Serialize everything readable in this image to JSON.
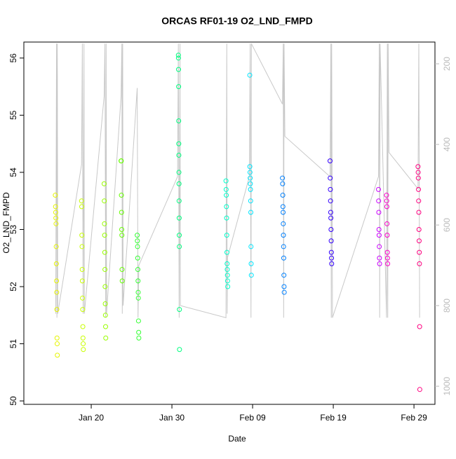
{
  "chart_data": {
    "type": "scatter",
    "title": "ORCAS RF01-19 O2_LND_FMPD",
    "x_label": "Date",
    "y_label": "O2_LND_FMPD",
    "xlim": [
      11.65,
      62.6
    ],
    "ylim": [
      49.94,
      56.28
    ],
    "y2lim": [
      1045,
      146
    ],
    "xticks": [
      {
        "value": 20,
        "label": "Jan 20"
      },
      {
        "value": 30,
        "label": "Jan 30"
      },
      {
        "value": 40,
        "label": "Feb 09"
      },
      {
        "value": 50,
        "label": "Feb 19"
      },
      {
        "value": 60,
        "label": "Feb 29"
      }
    ],
    "yticks": [
      50,
      51,
      52,
      53,
      54,
      55,
      56
    ],
    "y2ticks": [
      200,
      400,
      600,
      800,
      1000
    ],
    "series": [
      {
        "color": "#e6f500",
        "x": [
          15.55,
          15.58,
          15.6,
          15.62,
          15.64,
          15.66,
          15.68,
          15.7,
          15.72,
          15.74,
          15.76,
          15.78,
          15.8
        ],
        "values": [
          53.6,
          53.4,
          53.3,
          53.2,
          53.1,
          52.7,
          52.4,
          52.1,
          51.9,
          51.6,
          51.1,
          51.0,
          50.8
        ]
      },
      {
        "color": "#c8ff00",
        "x": [
          18.8,
          18.82,
          18.84,
          18.86,
          18.88,
          18.9,
          18.92,
          18.94,
          18.96,
          18.98,
          19.0,
          19.02
        ],
        "values": [
          53.5,
          53.4,
          52.9,
          52.7,
          52.3,
          52.1,
          51.8,
          51.6,
          51.3,
          51.1,
          51.0,
          50.9
        ]
      },
      {
        "color": "#99ff00",
        "x": [
          21.6,
          21.62,
          21.64,
          21.66,
          21.68,
          21.7,
          21.72,
          21.74,
          21.76,
          21.78,
          21.8
        ],
        "values": [
          53.8,
          53.5,
          53.1,
          52.9,
          52.6,
          52.3,
          52.0,
          51.7,
          51.5,
          51.3,
          51.1
        ]
      },
      {
        "color": "#66ff00",
        "x": [
          23.7,
          23.72,
          23.74,
          23.76,
          23.78,
          23.8,
          23.82,
          23.84
        ],
        "values": [
          54.2,
          54.2,
          53.6,
          53.3,
          53.0,
          52.9,
          52.3,
          52.1
        ]
      },
      {
        "color": "#33ff33",
        "x": [
          25.7,
          25.72,
          25.74,
          25.76,
          25.78,
          25.8,
          25.82,
          25.84,
          25.86,
          25.88,
          25.9
        ],
        "values": [
          52.9,
          52.8,
          52.7,
          52.5,
          52.3,
          52.1,
          51.9,
          51.8,
          51.4,
          51.2,
          51.1
        ]
      },
      {
        "color": "#00ff80",
        "x": [
          30.8,
          30.81,
          30.82,
          30.83,
          30.84,
          30.85,
          30.86,
          30.87,
          30.88,
          30.89,
          30.9,
          30.91,
          30.92,
          30.93,
          30.94
        ],
        "values": [
          56.05,
          56.0,
          55.8,
          55.5,
          54.9,
          54.5,
          54.3,
          54.0,
          53.8,
          53.5,
          53.2,
          52.9,
          52.7,
          51.6,
          50.9
        ]
      },
      {
        "color": "#00ffcc",
        "x": [
          36.7,
          36.72,
          36.74,
          36.76,
          36.78,
          36.8,
          36.82,
          36.84,
          36.86,
          36.88,
          36.9,
          36.92
        ],
        "values": [
          53.85,
          53.7,
          53.6,
          53.4,
          53.2,
          52.9,
          52.6,
          52.4,
          52.3,
          52.2,
          52.1,
          52.0
        ]
      },
      {
        "color": "#00e5ff",
        "x": [
          39.65,
          39.66,
          39.68,
          39.7,
          39.72,
          39.74,
          39.76,
          39.78,
          39.8,
          39.82,
          39.84
        ],
        "values": [
          55.7,
          54.1,
          54.0,
          53.9,
          53.8,
          53.7,
          53.5,
          53.3,
          52.7,
          52.4,
          52.2
        ]
      },
      {
        "color": "#0080ff",
        "x": [
          43.7,
          43.72,
          43.74,
          43.76,
          43.78,
          43.8,
          43.82,
          43.84,
          43.86,
          43.88,
          43.9,
          43.92
        ],
        "values": [
          53.9,
          53.8,
          53.6,
          53.4,
          53.3,
          53.1,
          52.9,
          52.7,
          52.5,
          52.2,
          52.0,
          51.9
        ]
      },
      {
        "color": "#3300ff",
        "x": [
          49.6,
          49.62,
          49.64,
          49.66,
          49.68,
          49.7,
          49.72,
          49.74,
          49.76,
          49.78,
          49.8
        ],
        "values": [
          54.2,
          53.9,
          53.7,
          53.5,
          53.3,
          53.2,
          53.0,
          52.8,
          52.6,
          52.5,
          52.4
        ]
      },
      {
        "color": "#cc00ff",
        "x": [
          55.6,
          55.62,
          55.64,
          55.66,
          55.68,
          55.7,
          55.72,
          55.74
        ],
        "values": [
          53.7,
          53.5,
          53.3,
          53.0,
          52.9,
          52.7,
          52.5,
          52.4
        ]
      },
      {
        "color": "#ff00cc",
        "x": [
          56.6,
          56.62,
          56.64,
          56.66,
          56.68,
          56.7,
          56.72,
          56.74
        ],
        "values": [
          53.6,
          53.5,
          53.4,
          53.1,
          52.9,
          52.6,
          52.5,
          52.4
        ]
      },
      {
        "color": "#ff0080",
        "x": [
          60.5,
          60.52,
          60.54,
          60.56,
          60.58,
          60.6,
          60.62,
          60.64,
          60.66,
          60.68,
          60.7,
          60.72
        ],
        "values": [
          54.1,
          54.0,
          53.9,
          53.7,
          53.5,
          53.3,
          53.0,
          52.8,
          52.6,
          52.4,
          51.3,
          50.2
        ]
      },
      {
        "type": "line",
        "axis": "y2",
        "color": "#c8c8c8",
        "x": [
          15.6,
          15.7,
          15.75,
          15.8,
          15.85,
          18.8,
          18.9,
          19.0,
          19.1,
          19.15,
          21.6,
          21.7,
          21.8,
          21.85,
          21.9,
          23.7,
          23.8,
          23.85,
          23.9,
          23.95,
          25.7,
          25.8,
          25.9,
          30.7,
          30.8,
          30.9,
          31.0,
          31.05,
          36.7,
          36.8,
          36.85,
          36.9,
          39.6,
          39.7,
          39.8,
          39.85,
          43.7,
          43.8,
          43.85,
          43.9,
          44.0,
          49.6,
          49.7,
          49.75,
          49.8,
          49.9,
          55.6,
          55.7,
          55.75,
          55.8,
          56.6,
          56.7,
          56.75,
          56.8,
          56.9,
          60.5,
          60.6,
          60.7
        ],
        "values": [
          820,
          150,
          830,
          150,
          820,
          450,
          150,
          820,
          150,
          820,
          280,
          150,
          830,
          150,
          820,
          280,
          150,
          820,
          150,
          800,
          260,
          830,
          700,
          480,
          150,
          830,
          150,
          800,
          830,
          150,
          820,
          680,
          480,
          150,
          830,
          150,
          300,
          150,
          830,
          150,
          380,
          480,
          150,
          830,
          150,
          830,
          480,
          150,
          830,
          150,
          830,
          150,
          830,
          150,
          420,
          510,
          150,
          830
        ]
      }
    ]
  }
}
